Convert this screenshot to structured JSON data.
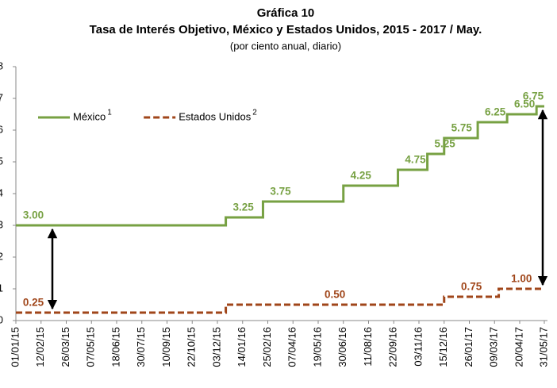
{
  "chart_data": {
    "type": "step",
    "title": "Gráfica 10",
    "subtitle": "Tasa de Interés Objetivo, México y Estados Unidos, 2015 - 2017 / May.",
    "note": "(por ciento anual, diario)",
    "xlim": [
      "01/01/15",
      "31/05/17"
    ],
    "xticks": [
      "01/01/15",
      "12/02/15",
      "26/03/15",
      "07/05/15",
      "18/06/15",
      "30/07/15",
      "10/09/15",
      "22/10/15",
      "03/12/15",
      "14/01/16",
      "25/02/16",
      "07/04/16",
      "19/05/16",
      "30/06/16",
      "11/08/16",
      "22/09/16",
      "03/11/16",
      "15/12/16",
      "26/01/17",
      "09/03/17",
      "20/04/17",
      "31/05/17"
    ],
    "ylim": [
      0,
      8
    ],
    "yticks": [
      0,
      1,
      2,
      3,
      4,
      5,
      6,
      7,
      8
    ],
    "series": [
      {
        "name": "México",
        "superscript": "1",
        "color": "#77a143",
        "dash": false,
        "x": [
          "01/01/15",
          "17/12/15",
          "17/02/16",
          "30/06/16",
          "29/09/16",
          "17/11/16",
          "15/12/16",
          "09/02/17",
          "30/03/17",
          "18/05/17"
        ],
        "values": [
          3,
          3.25,
          3.75,
          4.25,
          4.75,
          5.25,
          5.75,
          6.25,
          6.5,
          6.75
        ],
        "value_labels": [
          "3.00",
          "3.25",
          "3.75",
          "4.25",
          "4.75",
          "5.25",
          "5.75",
          "6.25",
          "6.50",
          "6.75"
        ]
      },
      {
        "name": "Estados Unidos",
        "superscript": "2",
        "color": "#a0461a",
        "dash": true,
        "x": [
          "01/01/15",
          "17/12/15",
          "15/12/16",
          "16/03/17"
        ],
        "values": [
          0.25,
          0.5,
          0.75,
          1
        ],
        "value_labels": [
          "0.25",
          "0.50",
          "0.75",
          "1.00"
        ]
      }
    ]
  }
}
